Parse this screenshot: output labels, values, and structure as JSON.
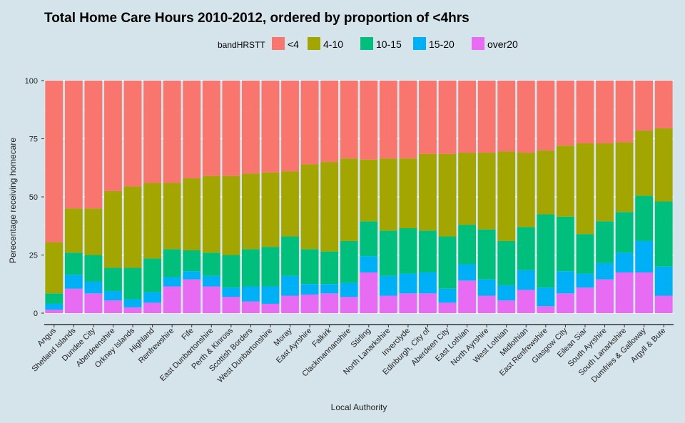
{
  "chart_data": {
    "type": "bar",
    "stacked": true,
    "percent": true,
    "title": "Total Home Care Hours 2010-2012, ordered by proportion of <4hrs",
    "xlabel": "Local Authority",
    "ylabel": "Perecentage receiving homecare",
    "ylim": [
      0,
      100
    ],
    "yticks": [
      0,
      25,
      50,
      75,
      100
    ],
    "grid": true,
    "legend": {
      "title": "bandHRSTT",
      "position": "top"
    },
    "categories": [
      "Angus",
      "Shetland Islands",
      "Dundee City",
      "Aberdeenshire",
      "Orkney Islands",
      "Highland",
      "Renfrewshire",
      "Fife",
      "East Dunbartonshire",
      "Perth & Kinross",
      "Scottish Borders",
      "West Dunbartonshire",
      "Moray",
      "East Ayrshire",
      "Falkirk",
      "Clackmannanshire",
      "Stirling",
      "North Lanarkshire",
      "Inverclyde",
      "Edinburgh, City of",
      "Aberdeen City",
      "East Lothian",
      "North Ayrshire",
      "West Lothian",
      "Midlothian",
      "East Renfrewshire",
      "Glasgow City",
      "Eilean Siar",
      "South Ayrshire",
      "South Lanarkshire",
      "Dumfries & Galloway",
      "Argyll & Bute"
    ],
    "series": [
      {
        "name": "over20",
        "color": "#e76bf3",
        "values": [
          1.5,
          10.5,
          8.5,
          5.5,
          2.5,
          4.5,
          11.5,
          14.5,
          11.5,
          7,
          5,
          4,
          7.5,
          8,
          8.5,
          7,
          17.5,
          7.5,
          8.5,
          8.5,
          4.5,
          14,
          7.5,
          5.5,
          10,
          3,
          8.5,
          11,
          14.5,
          17.5,
          17.5,
          7.5
        ]
      },
      {
        "name": "15-20",
        "color": "#00b0f6",
        "values": [
          2.5,
          6,
          5,
          4,
          3.5,
          4.5,
          4,
          3.5,
          4.5,
          4,
          6.5,
          7.5,
          8.5,
          4.5,
          4,
          6,
          7,
          8.5,
          8.5,
          9,
          6,
          7,
          7,
          6.5,
          8.5,
          8,
          9.5,
          6,
          7,
          8.5,
          13.5,
          12.5
        ]
      },
      {
        "name": "10-15",
        "color": "#00bf7d",
        "values": [
          4.5,
          9.5,
          11.5,
          10,
          13.5,
          14.5,
          12,
          9,
          10,
          14,
          16,
          17,
          17,
          15,
          14,
          18,
          15,
          19.5,
          19.5,
          18,
          22.5,
          17,
          21.5,
          19,
          18.5,
          31.5,
          23.5,
          17,
          18,
          17.5,
          19.5,
          28
        ]
      },
      {
        "name": "4-10",
        "color": "#a3a500",
        "values": [
          22,
          19,
          20,
          33,
          35,
          32.5,
          28.5,
          31,
          33,
          34,
          32.5,
          32,
          28,
          36.5,
          38.5,
          35.5,
          26.5,
          31,
          30,
          33,
          35.5,
          31,
          33,
          38.5,
          32,
          27.5,
          30.5,
          39,
          33.5,
          30,
          28,
          31.5
        ]
      },
      {
        "name": "<4",
        "color": "#f8766d",
        "values": [
          69.5,
          55,
          55,
          47.5,
          45.5,
          44,
          44,
          42,
          41,
          41,
          40,
          39.5,
          39,
          36,
          35,
          33.5,
          34,
          33.5,
          33.5,
          31.5,
          31.5,
          31,
          31,
          30.5,
          31,
          30,
          28,
          27,
          27,
          26.5,
          21.5,
          20.5
        ]
      }
    ]
  }
}
